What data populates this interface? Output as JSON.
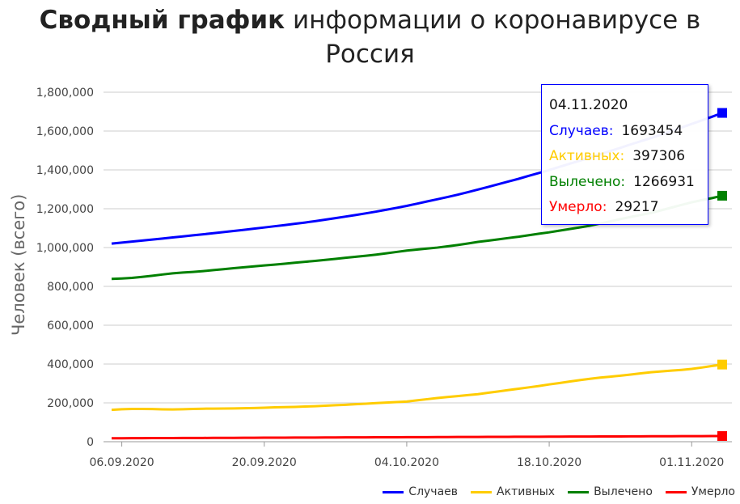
{
  "chart_data": {
    "type": "line",
    "title_bold": "Сводный график",
    "title_rest": "информации о коронавирусе в Россия",
    "ylabel": "Человек (всего)",
    "xlabel": "",
    "ylim": [
      0,
      1800000
    ],
    "yticks": [
      "0",
      "200,000",
      "400,000",
      "600,000",
      "800,000",
      "1,000,000",
      "1,200,000",
      "1,400,000",
      "1,600,000",
      "1,800,000"
    ],
    "xticks": [
      "06.09.2020",
      "20.09.2020",
      "04.10.2020",
      "18.10.2020",
      "01.11.2020"
    ],
    "grid": true,
    "legend_position": "bottom-right",
    "x": [
      "05.09.2020",
      "06.09.2020",
      "07.09.2020",
      "08.09.2020",
      "09.09.2020",
      "10.09.2020",
      "11.09.2020",
      "12.09.2020",
      "13.09.2020",
      "14.09.2020",
      "15.09.2020",
      "16.09.2020",
      "17.09.2020",
      "18.09.2020",
      "19.09.2020",
      "20.09.2020",
      "21.09.2020",
      "22.09.2020",
      "23.09.2020",
      "24.09.2020",
      "25.09.2020",
      "26.09.2020",
      "27.09.2020",
      "28.09.2020",
      "29.09.2020",
      "30.09.2020",
      "01.10.2020",
      "02.10.2020",
      "03.10.2020",
      "04.10.2020",
      "05.10.2020",
      "06.10.2020",
      "07.10.2020",
      "08.10.2020",
      "09.10.2020",
      "10.10.2020",
      "11.10.2020",
      "12.10.2020",
      "13.10.2020",
      "14.10.2020",
      "15.10.2020",
      "16.10.2020",
      "17.10.2020",
      "18.10.2020",
      "19.10.2020",
      "20.10.2020",
      "21.10.2020",
      "22.10.2020",
      "23.10.2020",
      "24.10.2020",
      "25.10.2020",
      "26.10.2020",
      "27.10.2020",
      "28.10.2020",
      "29.10.2020",
      "30.10.2020",
      "31.10.2020",
      "01.11.2020",
      "02.11.2020",
      "03.11.2020",
      "04.11.2020"
    ],
    "series": [
      {
        "name": "Случаев",
        "color": "#0000ff",
        "values": [
          1020310,
          1025505,
          1030690,
          1035789,
          1041007,
          1046370,
          1051874,
          1057362,
          1062811,
          1068320,
          1073849,
          1079519,
          1085248,
          1091186,
          1097251,
          1103399,
          1109595,
          1115810,
          1122241,
          1128836,
          1136048,
          1143571,
          1151438,
          1159573,
          1167805,
          1176286,
          1185231,
          1194643,
          1204502,
          1214725,
          1225889,
          1237504,
          1248619,
          1260112,
          1272238,
          1285084,
          1298718,
          1312310,
          1326178,
          1340409,
          1354163,
          1369313,
          1384235,
          1399334,
          1415316,
          1431635,
          1447335,
          1463306,
          1480646,
          1497167,
          1513877,
          1531224,
          1547774,
          1563976,
          1581693,
          1599976,
          1618116,
          1636781,
          1655038,
          1673686,
          1693454
        ]
      },
      {
        "name": "Активных",
        "color": "#ffcc00",
        "values": [
          164000,
          167000,
          169000,
          168500,
          168000,
          166500,
          166000,
          167000,
          169000,
          170000,
          170500,
          171000,
          171500,
          172500,
          173500,
          175000,
          177000,
          178000,
          179000,
          181000,
          183000,
          185500,
          188000,
          190000,
          193000,
          196000,
          199000,
          201500,
          204000,
          207000,
          213000,
          219000,
          225000,
          230000,
          235000,
          240000,
          245000,
          252000,
          259000,
          266000,
          273000,
          280000,
          287000,
          295000,
          302000,
          310000,
          317000,
          324000,
          330000,
          335000,
          340000,
          346000,
          352000,
          358000,
          362000,
          366000,
          370000,
          375000,
          382000,
          390000,
          397306
        ]
      },
      {
        "name": "Вылечено",
        "color": "#008000",
        "values": [
          838551,
          840555,
          843549,
          848957,
          854484,
          861156,
          866969,
          871266,
          874524,
          878842,
          883680,
          888659,
          893697,
          898444,
          903318,
          907775,
          911780,
          916804,
          922044,
          926448,
          931469,
          936301,
          941477,
          947421,
          952462,
          957752,
          963506,
          970227,
          977395,
          984427,
          989400,
          994824,
          999748,
          1006050,
          1012985,
          1020640,
          1029083,
          1035484,
          1042161,
          1049201,
          1055764,
          1063723,
          1071454,
          1078362,
          1087153,
          1095281,
          1103790,
          1112570,
          1123719,
          1135049,
          1146568,
          1157724,
          1168083,
          1178094,
          1191620,
          1205712,
          1219661,
          1233135,
          1244201,
          1254658,
          1266931
        ]
      },
      {
        "name": "Умерло",
        "color": "#ff0000",
        "values": [
          17759,
          17950,
          18141,
          18332,
          18523,
          18714,
          18905,
          19096,
          19287,
          19478,
          19669,
          19860,
          20051,
          20242,
          20433,
          20624,
          20815,
          21006,
          21197,
          21388,
          21579,
          21770,
          21961,
          22152,
          22343,
          22534,
          22725,
          22916,
          23107,
          23298,
          23489,
          23680,
          23871,
          24062,
          24253,
          24444,
          24635,
          24826,
          25017,
          25208,
          25399,
          25590,
          25781,
          25972,
          26163,
          26354,
          26545,
          26736,
          26927,
          27118,
          27309,
          27500,
          27691,
          27882,
          28073,
          28264,
          28455,
          28646,
          28837,
          29028,
          29217
        ]
      }
    ],
    "tooltip": {
      "date": "04.11.2020",
      "rows": [
        {
          "label": "Случаев:",
          "value": "1693454",
          "color": "#0000ff"
        },
        {
          "label": "Активных:",
          "value": "397306",
          "color": "#ffcc00"
        },
        {
          "label": "Вылечено:",
          "value": "1266931",
          "color": "#008000"
        },
        {
          "label": "Умерло:",
          "value": "29217",
          "color": "#ff0000"
        }
      ]
    }
  }
}
